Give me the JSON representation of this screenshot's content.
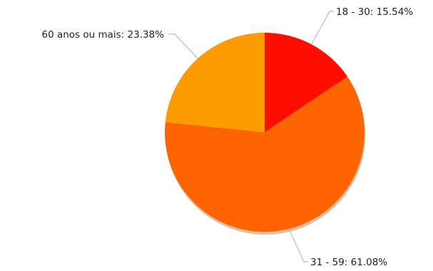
{
  "chart_data": {
    "type": "pie",
    "title": "",
    "slices": [
      {
        "label": "18 - 30",
        "value": 15.54,
        "display": "18 - 30: 15.54%",
        "color": "#fe0e00"
      },
      {
        "label": "31 - 59",
        "value": 61.08,
        "display": "31 - 59: 61.08%",
        "color": "#fe6500"
      },
      {
        "label": "60 anos ou mais",
        "value": 23.38,
        "display": "60 anos ou mais: 23.38%",
        "color": "#fe9b00"
      }
    ],
    "start_angle": "12 o'clock",
    "direction": "clockwise",
    "legend": "none",
    "labels": "outside with leader lines"
  }
}
